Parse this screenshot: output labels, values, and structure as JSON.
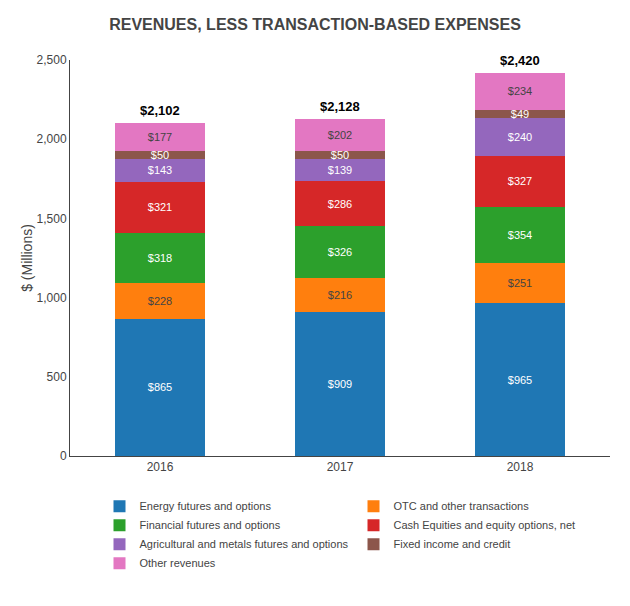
{
  "chart_data": {
    "type": "bar",
    "stacked": true,
    "title": "REVENUES, LESS TRANSACTION-BASED EXPENSES",
    "ylabel": "$ (Millions)",
    "categories": [
      "2016",
      "2017",
      "2018"
    ],
    "series": [
      {
        "name": "Energy futures and options",
        "values": [
          865,
          909,
          965
        ],
        "value_labels": [
          "$865",
          "$909",
          "$965"
        ]
      },
      {
        "name": "OTC and other transactions",
        "values": [
          228,
          216,
          251
        ],
        "value_labels": [
          "$228",
          "$216",
          "$251"
        ]
      },
      {
        "name": "Financial futures and options",
        "values": [
          318,
          326,
          354
        ],
        "value_labels": [
          "$318",
          "$326",
          "$354"
        ]
      },
      {
        "name": "Cash Equities and equity options, net",
        "values": [
          321,
          286,
          327
        ],
        "value_labels": [
          "$321",
          "$286",
          "$327"
        ]
      },
      {
        "name": "Agricultural and metals futures and options",
        "values": [
          143,
          139,
          240
        ],
        "value_labels": [
          "$143",
          "$139",
          "$240"
        ]
      },
      {
        "name": "Fixed income and credit",
        "values": [
          50,
          50,
          49
        ],
        "value_labels": [
          "$50",
          "$50",
          "$49"
        ]
      },
      {
        "name": "Other revenues",
        "values": [
          177,
          202,
          234
        ],
        "value_labels": [
          "$177",
          "$202",
          "$234"
        ]
      }
    ],
    "totals": [
      2102,
      2128,
      2420
    ],
    "total_labels": [
      "$2,102",
      "$2,128",
      "$2,420"
    ],
    "ylim": [
      0,
      2500
    ],
    "yticks": [
      0,
      500,
      {
        "value": 1000,
        "label": "1,000"
      },
      {
        "value": 1500,
        "label": "1,500"
      },
      {
        "value": 2000,
        "label": "2,000"
      },
      {
        "value": 2500,
        "label": "2,500"
      }
    ],
    "data_labels": true,
    "legend": "bottom",
    "grid": false
  }
}
